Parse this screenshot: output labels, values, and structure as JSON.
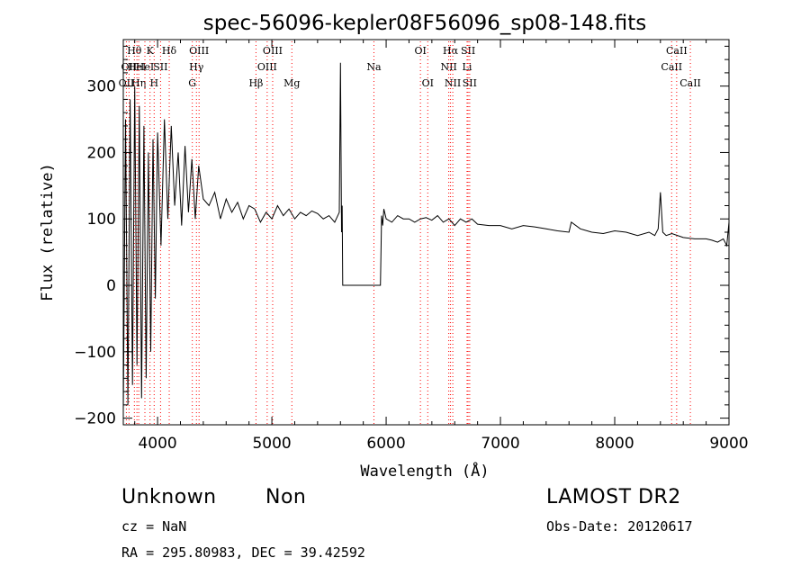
{
  "chart_data": {
    "type": "line",
    "title": "spec-56096-kepler08F56096_sp08-148.fits",
    "xlabel": "Wavelength (Å)",
    "ylabel": "Flux (relative)",
    "xlim": [
      3700,
      9000
    ],
    "ylim": [
      -210,
      370
    ],
    "xticks": [
      4000,
      5000,
      6000,
      7000,
      8000,
      9000
    ],
    "yticks": [
      -200,
      -100,
      0,
      100,
      200,
      300
    ],
    "grid": false,
    "series": [
      {
        "x": [
          3700,
          3720,
          3740,
          3760,
          3780,
          3800,
          3820,
          3840,
          3860,
          3880,
          3900,
          3920,
          3940,
          3960,
          3980,
          4000,
          4030,
          4060,
          4090,
          4120,
          4150,
          4180,
          4210,
          4240,
          4270,
          4300,
          4330,
          4360,
          4400,
          4450,
          4500,
          4550,
          4600,
          4650,
          4700,
          4750,
          4800,
          4850,
          4900,
          4950,
          5000,
          5050,
          5100,
          5150,
          5200,
          5250,
          5300,
          5350,
          5400,
          5450,
          5500,
          5550,
          5590,
          5600,
          5610,
          5615,
          5620,
          5640,
          5680,
          5700,
          5750,
          5800,
          5850,
          5900,
          5950,
          5960,
          5970,
          5980,
          6000,
          6050,
          6100,
          6150,
          6200,
          6250,
          6300,
          6350,
          6400,
          6450,
          6500,
          6550,
          6600,
          6650,
          6700,
          6750,
          6800,
          6900,
          7000,
          7100,
          7200,
          7300,
          7400,
          7500,
          7600,
          7620,
          7700,
          7800,
          7900,
          8000,
          8100,
          8200,
          8300,
          8350,
          8380,
          8400,
          8420,
          8450,
          8500,
          8600,
          8700,
          8800,
          8850,
          8900,
          8950,
          8980,
          9000
        ],
        "y": [
          -190,
          250,
          -180,
          280,
          -150,
          300,
          -120,
          270,
          -170,
          240,
          -140,
          200,
          -100,
          220,
          -20,
          230,
          60,
          250,
          100,
          240,
          120,
          200,
          90,
          210,
          110,
          190,
          100,
          180,
          130,
          120,
          140,
          100,
          130,
          110,
          125,
          100,
          120,
          115,
          95,
          110,
          100,
          120,
          105,
          115,
          100,
          110,
          105,
          112,
          108,
          100,
          105,
          95,
          110,
          335,
          80,
          120,
          0,
          0,
          0,
          0,
          0,
          0,
          0,
          0,
          0,
          105,
          90,
          115,
          100,
          95,
          105,
          100,
          100,
          95,
          100,
          102,
          98,
          105,
          95,
          100,
          90,
          100,
          95,
          100,
          92,
          90,
          90,
          85,
          90,
          88,
          85,
          82,
          80,
          95,
          85,
          80,
          78,
          82,
          80,
          75,
          80,
          75,
          85,
          140,
          80,
          75,
          78,
          72,
          70,
          70,
          68,
          65,
          70,
          60,
          95
        ]
      }
    ],
    "lines": [
      {
        "wave": 3727,
        "labels": [
          "OII"
        ],
        "row": 2
      },
      {
        "wave": 3750,
        "labels": [
          "OII"
        ],
        "row": 1
      },
      {
        "wave": 3797,
        "labels": [
          "Hθ"
        ],
        "row": 0
      },
      {
        "wave": 3819,
        "labels": [
          "HeI"
        ],
        "row": 1
      },
      {
        "wave": 3835,
        "labels": [
          "Hη"
        ],
        "row": 2
      },
      {
        "wave": 3889,
        "labels": [
          "HeI"
        ],
        "row": 1
      },
      {
        "wave": 3934,
        "labels": [
          "K"
        ],
        "row": 0
      },
      {
        "wave": 3970,
        "labels": [
          "H"
        ],
        "row": 2
      },
      {
        "wave": 4026,
        "labels": [
          "SII"
        ],
        "row": 1
      },
      {
        "wave": 4102,
        "labels": [
          "Hδ"
        ],
        "row": 0
      },
      {
        "wave": 4304,
        "labels": [
          "G"
        ],
        "row": 2
      },
      {
        "wave": 4340,
        "labels": [
          "Hγ"
        ],
        "row": 1
      },
      {
        "wave": 4363,
        "labels": [
          "OIII"
        ],
        "row": 0
      },
      {
        "wave": 4861,
        "labels": [
          "Hβ"
        ],
        "row": 2
      },
      {
        "wave": 4959,
        "labels": [
          "OIII"
        ],
        "row": 1
      },
      {
        "wave": 5007,
        "labels": [
          "OIII"
        ],
        "row": 0
      },
      {
        "wave": 5175,
        "labels": [
          "Mg"
        ],
        "row": 2
      },
      {
        "wave": 5893,
        "labels": [
          "Na"
        ],
        "row": 1
      },
      {
        "wave": 6300,
        "labels": [
          "OI"
        ],
        "row": 0
      },
      {
        "wave": 6364,
        "labels": [
          "OI"
        ],
        "row": 2
      },
      {
        "wave": 6548,
        "labels": [
          "NII"
        ],
        "row": 1
      },
      {
        "wave": 6563,
        "labels": [
          "Hα"
        ],
        "row": 0
      },
      {
        "wave": 6583,
        "labels": [
          "NII"
        ],
        "row": 2
      },
      {
        "wave": 6708,
        "labels": [
          "Li"
        ],
        "row": 1
      },
      {
        "wave": 6717,
        "labels": [
          "SII"
        ],
        "row": 0
      },
      {
        "wave": 6731,
        "labels": [
          "SII"
        ],
        "row": 2
      },
      {
        "wave": 8498,
        "labels": [
          "CaII"
        ],
        "row": 1
      },
      {
        "wave": 8542,
        "labels": [
          "CaII"
        ],
        "row": 0
      },
      {
        "wave": 8662,
        "labels": [
          "CaII"
        ],
        "row": 2
      }
    ],
    "line_color": "#ff0000"
  },
  "info": {
    "class_label": "Unknown",
    "subclass_label": "Non",
    "survey_label": "LAMOST DR2",
    "cz_label": "cz = NaN",
    "obs_date_label": "Obs-Date: 20120617",
    "radec_label": "RA = 295.80983, DEC =  39.42592"
  }
}
